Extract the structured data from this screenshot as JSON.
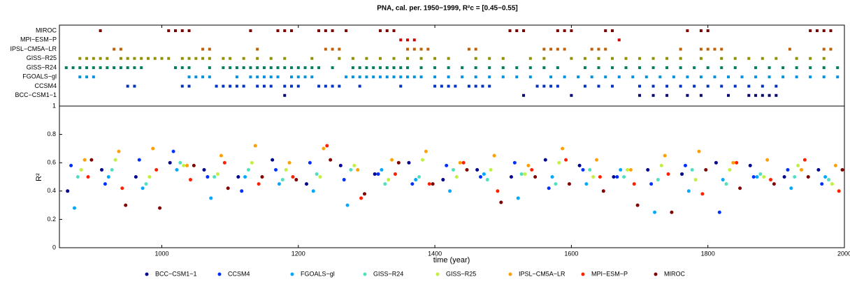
{
  "chart_data": [
    {
      "type": "event",
      "title": "PNA, cal. per. 1950−1999, R²c = [0.45−0.55]",
      "xlim": [
        850,
        2000
      ],
      "rows": [
        {
          "label": "MIROC",
          "color": "#7a0000",
          "x": [
            910,
            1010,
            1020,
            1030,
            1040,
            1130,
            1170,
            1180,
            1190,
            1230,
            1240,
            1250,
            1270,
            1320,
            1330,
            1340,
            1510,
            1520,
            1530,
            1580,
            1590,
            1600,
            1650,
            1660,
            1770,
            1790,
            1800,
            1950,
            1960,
            1970,
            1980
          ]
        },
        {
          "label": "MPI−ESM−P",
          "color": "#d00000",
          "x": [
            1350,
            1360,
            1370,
            1670
          ]
        },
        {
          "label": "IPSL−CM5A−LR",
          "color": "#c06000",
          "x": [
            930,
            940,
            1060,
            1070,
            1140,
            1240,
            1250,
            1260,
            1360,
            1370,
            1380,
            1390,
            1450,
            1460,
            1560,
            1570,
            1580,
            1590,
            1630,
            1640,
            1650,
            1760,
            1790,
            1800,
            1810,
            1820,
            1920,
            1970,
            1980
          ]
        },
        {
          "label": "GISS−R25",
          "color": "#909000",
          "x": [
            880,
            890,
            900,
            910,
            920,
            940,
            950,
            960,
            970,
            980,
            990,
            1000,
            1010,
            1030,
            1040,
            1050,
            1060,
            1070,
            1090,
            1100,
            1120,
            1140,
            1160,
            1180,
            1220,
            1260,
            1280,
            1300,
            1320,
            1340,
            1360,
            1380,
            1400,
            1420,
            1460,
            1480,
            1500,
            1540,
            1560,
            1600,
            1620,
            1640,
            1660,
            1680,
            1700,
            1720,
            1740,
            1760,
            1790,
            1820,
            1840,
            1860,
            1880,
            1900,
            1930,
            1950,
            1970
          ]
        },
        {
          "label": "GISS−R24",
          "color": "#008060",
          "x": [
            860,
            870,
            880,
            890,
            900,
            910,
            920,
            930,
            940,
            950,
            960,
            970,
            1020,
            1030,
            1040,
            1070,
            1090,
            1100,
            1110,
            1120,
            1130,
            1140,
            1150,
            1160,
            1170,
            1180,
            1190,
            1200,
            1210,
            1220,
            1230,
            1250,
            1280,
            1290,
            1300,
            1310,
            1320,
            1330,
            1340,
            1350,
            1360,
            1380,
            1400,
            1420,
            1440,
            1460,
            1480,
            1500,
            1520,
            1540,
            1560,
            1580,
            1620,
            1640,
            1660,
            1680,
            1700,
            1720,
            1740,
            1760,
            1780,
            1800,
            1820,
            1840,
            1870,
            1890,
            1910,
            1930,
            1950,
            1970,
            1990
          ]
        },
        {
          "label": "FGOALS−gl",
          "color": "#0090e0",
          "x": [
            880,
            890,
            900,
            1040,
            1050,
            1060,
            1070,
            1110,
            1130,
            1140,
            1150,
            1160,
            1170,
            1190,
            1200,
            1210,
            1220,
            1270,
            1280,
            1290,
            1300,
            1310,
            1320,
            1330,
            1340,
            1350,
            1360,
            1370,
            1380,
            1400,
            1420,
            1440,
            1460,
            1480,
            1500,
            1520,
            1540,
            1570,
            1590,
            1610,
            1630,
            1650,
            1670,
            1690,
            1710,
            1730,
            1750,
            1770,
            1790,
            1810,
            1830,
            1850,
            1870,
            1890,
            1910,
            1930,
            1950,
            1970,
            1990
          ]
        },
        {
          "label": "CCSM4",
          "color": "#0030c0",
          "x": [
            950,
            960,
            1030,
            1040,
            1080,
            1090,
            1100,
            1110,
            1120,
            1140,
            1150,
            1160,
            1180,
            1190,
            1200,
            1230,
            1240,
            1250,
            1260,
            1290,
            1350,
            1400,
            1410,
            1420,
            1430,
            1450,
            1460,
            1470,
            1480,
            1550,
            1560,
            1570,
            1580,
            1620,
            1640,
            1660,
            1700,
            1720,
            1740,
            1760,
            1780,
            1800,
            1820,
            1840,
            1860,
            1880,
            1900
          ]
        },
        {
          "label": "BCC−CSM1−1",
          "color": "#000070",
          "x": [
            1180,
            1530,
            1600,
            1700,
            1720,
            1740,
            1770,
            1790,
            1830,
            1860,
            1870,
            1880,
            1890,
            1900
          ]
        }
      ]
    },
    {
      "type": "scatter",
      "xlabel": "time (year)",
      "ylabel": "R²",
      "xlim": [
        850,
        2000
      ],
      "xticks": [
        1000,
        1200,
        1400,
        1600,
        1800,
        2000
      ],
      "ylim": [
        0,
        1
      ],
      "yticks": [
        0,
        0.2,
        0.4,
        0.6,
        0.8,
        1
      ],
      "series": [
        {
          "name": "BCC−CSM1−1",
          "color": "#00008f",
          "x": [
            862,
            912,
            962,
            1012,
            1062,
            1112,
            1162,
            1212,
            1262,
            1312,
            1362,
            1412,
            1462,
            1512,
            1562,
            1612,
            1662,
            1712,
            1762,
            1812,
            1862,
            1912,
            1962
          ],
          "values": [
            0.4,
            0.55,
            0.5,
            0.6,
            0.55,
            0.5,
            0.62,
            0.45,
            0.58,
            0.52,
            0.6,
            0.48,
            0.55,
            0.5,
            0.62,
            0.58,
            0.5,
            0.55,
            0.52,
            0.6,
            0.58,
            0.5,
            0.55
          ]
        },
        {
          "name": "CCSM4",
          "color": "#0030ff",
          "x": [
            867,
            917,
            967,
            1017,
            1067,
            1117,
            1167,
            1217,
            1267,
            1317,
            1367,
            1417,
            1467,
            1517,
            1567,
            1617,
            1667,
            1717,
            1767,
            1817,
            1867,
            1917,
            1967
          ],
          "values": [
            0.58,
            0.45,
            0.62,
            0.68,
            0.5,
            0.4,
            0.55,
            0.6,
            0.48,
            0.52,
            0.45,
            0.58,
            0.5,
            0.6,
            0.42,
            0.55,
            0.5,
            0.45,
            0.58,
            0.25,
            0.5,
            0.55,
            0.45
          ]
        },
        {
          "name": "FGOALS−gl",
          "color": "#00a8ff",
          "x": [
            872,
            922,
            972,
            1022,
            1072,
            1122,
            1172,
            1222,
            1272,
            1322,
            1372,
            1422,
            1472,
            1522,
            1572,
            1622,
            1672,
            1722,
            1772,
            1822,
            1872,
            1922,
            1972
          ],
          "values": [
            0.28,
            0.5,
            0.42,
            0.55,
            0.35,
            0.5,
            0.45,
            0.4,
            0.3,
            0.55,
            0.48,
            0.4,
            0.52,
            0.35,
            0.5,
            0.45,
            0.55,
            0.25,
            0.4,
            0.48,
            0.5,
            0.42,
            0.5
          ]
        },
        {
          "name": "GISS−R24",
          "color": "#50e0c0",
          "x": [
            877,
            927,
            977,
            1027,
            1077,
            1127,
            1177,
            1227,
            1277,
            1327,
            1377,
            1427,
            1477,
            1527,
            1577,
            1627,
            1677,
            1727,
            1777,
            1827,
            1877,
            1927,
            1977
          ],
          "values": [
            0.5,
            0.55,
            0.45,
            0.6,
            0.5,
            0.55,
            0.48,
            0.52,
            0.55,
            0.45,
            0.5,
            0.55,
            0.48,
            0.52,
            0.45,
            0.55,
            0.5,
            0.48,
            0.55,
            0.45,
            0.52,
            0.5,
            0.48
          ]
        },
        {
          "name": "GISS−R25",
          "color": "#c0f040",
          "x": [
            882,
            932,
            982,
            1032,
            1082,
            1132,
            1182,
            1232,
            1282,
            1332,
            1382,
            1432,
            1482,
            1532,
            1582,
            1632,
            1682,
            1732,
            1782,
            1832,
            1882,
            1932,
            1982
          ],
          "values": [
            0.55,
            0.62,
            0.5,
            0.58,
            0.52,
            0.6,
            0.55,
            0.5,
            0.58,
            0.48,
            0.62,
            0.5,
            0.55,
            0.52,
            0.6,
            0.5,
            0.55,
            0.58,
            0.48,
            0.55,
            0.5,
            0.58,
            0.45
          ]
        },
        {
          "name": "IPSL−CM5A−LR",
          "color": "#ffa000",
          "x": [
            887,
            937,
            987,
            1037,
            1087,
            1137,
            1187,
            1237,
            1287,
            1337,
            1387,
            1437,
            1487,
            1537,
            1587,
            1637,
            1687,
            1737,
            1787,
            1837,
            1887,
            1937,
            1987
          ],
          "values": [
            0.62,
            0.68,
            0.7,
            0.58,
            0.65,
            0.72,
            0.6,
            0.7,
            0.55,
            0.62,
            0.68,
            0.6,
            0.65,
            0.58,
            0.7,
            0.62,
            0.55,
            0.65,
            0.68,
            0.6,
            0.62,
            0.55,
            0.58
          ]
        },
        {
          "name": "MPI−ESM−P",
          "color": "#ff2000",
          "x": [
            892,
            942,
            992,
            1042,
            1092,
            1142,
            1192,
            1242,
            1292,
            1342,
            1392,
            1442,
            1492,
            1542,
            1592,
            1642,
            1692,
            1742,
            1792,
            1842,
            1892,
            1942,
            1992
          ],
          "values": [
            0.5,
            0.42,
            0.55,
            0.48,
            0.6,
            0.45,
            0.5,
            0.72,
            0.35,
            0.52,
            0.45,
            0.6,
            0.4,
            0.55,
            0.62,
            0.5,
            0.45,
            0.52,
            0.38,
            0.6,
            0.48,
            0.62,
            0.4
          ]
        },
        {
          "name": "MIROC",
          "color": "#800000",
          "x": [
            897,
            947,
            997,
            1047,
            1097,
            1147,
            1197,
            1247,
            1297,
            1347,
            1397,
            1447,
            1497,
            1547,
            1597,
            1647,
            1697,
            1747,
            1797,
            1847,
            1897,
            1947,
            1997
          ],
          "values": [
            0.62,
            0.3,
            0.28,
            0.58,
            0.42,
            0.5,
            0.48,
            0.62,
            0.38,
            0.6,
            0.45,
            0.55,
            0.32,
            0.5,
            0.45,
            0.4,
            0.3,
            0.25,
            0.55,
            0.42,
            0.45,
            0.5,
            0.55
          ]
        }
      ]
    }
  ]
}
